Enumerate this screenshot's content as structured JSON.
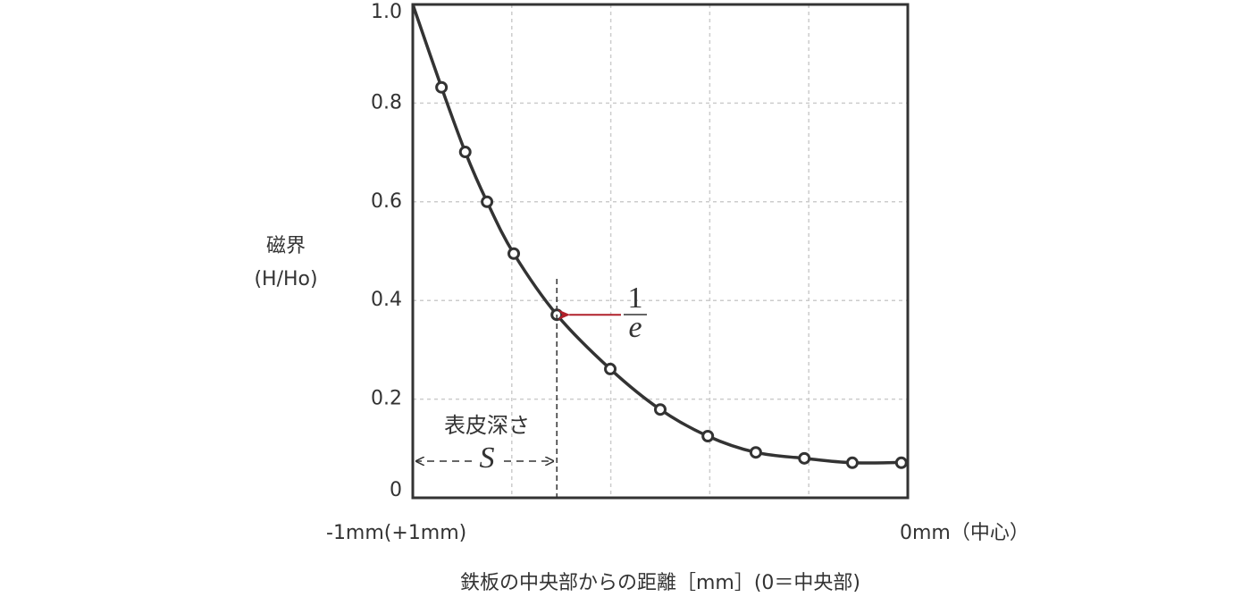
{
  "chart_data": {
    "type": "line",
    "xlabel": "鉄板の中央部からの距離［mm］(0＝中央部)",
    "ylabel": [
      "磁界",
      "(H/Ho)"
    ],
    "xlim": [
      -1,
      0
    ],
    "xticks": [
      {
        "value": -1,
        "label": "-1mm(+1mm)"
      },
      {
        "value": -0.8,
        "label": null
      },
      {
        "value": -0.6,
        "label": null
      },
      {
        "value": -0.4,
        "label": null
      },
      {
        "value": -0.2,
        "label": null
      },
      {
        "value": 0,
        "label": "0mm（中心）"
      }
    ],
    "ylim": [
      0,
      1
    ],
    "yticks": [
      0,
      0.2,
      0.4,
      0.6,
      0.8,
      {
        "value": 1,
        "label": "1.0"
      }
    ],
    "grid": true,
    "series": [
      {
        "color": "#333333",
        "style": "line",
        "x": [
          -1,
          -0.942,
          -0.894,
          -0.85,
          -0.796,
          -0.709,
          -0.601,
          -0.5,
          -0.404,
          -0.307,
          -0.209,
          -0.112,
          0
        ],
        "values": [
          1,
          0.832,
          0.701,
          0.6,
          0.495,
          0.371,
          0.261,
          0.179,
          0.125,
          0.092,
          0.08,
          0.071,
          0.072
        ]
      },
      {
        "color": "#333333",
        "style": "markers",
        "x": [
          -0.942,
          -0.894,
          -0.85,
          -0.796,
          -0.709,
          -0.601,
          -0.5,
          -0.404,
          -0.307,
          -0.209,
          -0.112,
          -0.013
        ],
        "values": [
          0.832,
          0.701,
          0.6,
          0.495,
          0.371,
          0.261,
          0.179,
          0.125,
          0.092,
          0.08,
          0.071,
          0.071
        ]
      }
    ],
    "annotations": {
      "depth_label": "表皮深さ",
      "depth_symbol": "S",
      "fraction_numerator": "1",
      "fraction_denominator": "e",
      "arrow_color": "#b0202a",
      "depth_x": -0.709,
      "depth_y": 0.371
    }
  }
}
